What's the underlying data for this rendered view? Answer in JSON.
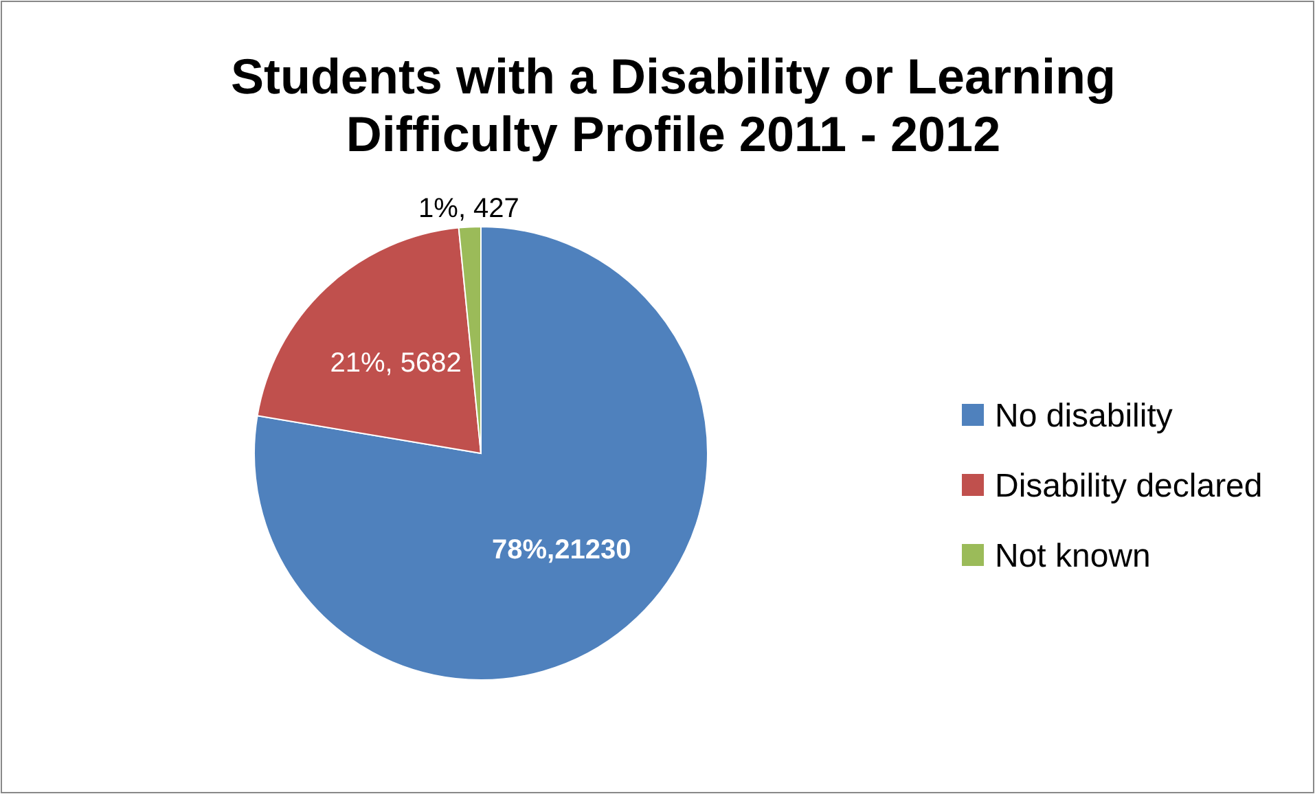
{
  "chart_data": {
    "type": "pie",
    "title": "Students with a Disability or Learning Difficulty Profile 2011 - 2012",
    "categories": [
      "No disability",
      "Disability declared",
      "Not known"
    ],
    "values": [
      21230,
      5682,
      427
    ],
    "colors": [
      "#4f81bd",
      "#c0504d",
      "#9bbb59"
    ],
    "value_labels": [
      "78%,21230",
      "21%, 5682",
      "1%, 427"
    ],
    "legend": "right"
  }
}
